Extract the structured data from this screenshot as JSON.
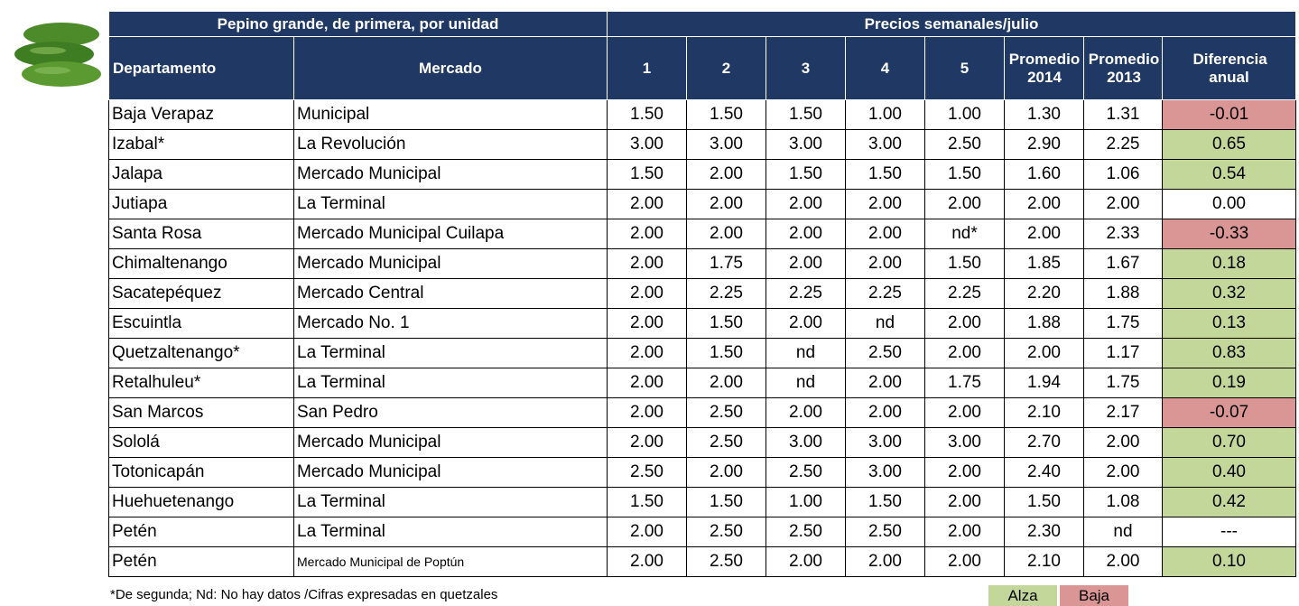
{
  "header": {
    "title": "Pepino grande, de primera, por unidad",
    "period": "Precios semanales/julio"
  },
  "columns": [
    "Departamento",
    "Mercado",
    "1",
    "2",
    "3",
    "4",
    "5",
    "Promedio 2014",
    "Promedio 2013",
    "Diferencia anual"
  ],
  "rows": [
    [
      "Baja Verapaz",
      "Municipal",
      "1.50",
      "1.50",
      "1.50",
      "1.00",
      "1.00",
      "1.30",
      "1.31",
      "-0.01"
    ],
    [
      "Izabal*",
      "La Revolución",
      "3.00",
      "3.00",
      "3.00",
      "3.00",
      "2.50",
      "2.90",
      "2.25",
      "0.65"
    ],
    [
      "Jalapa",
      "Mercado Municipal",
      "1.50",
      "2.00",
      "1.50",
      "1.50",
      "1.50",
      "1.60",
      "1.06",
      "0.54"
    ],
    [
      "Jutiapa",
      "La Terminal",
      "2.00",
      "2.00",
      "2.00",
      "2.00",
      "2.00",
      "2.00",
      "2.00",
      "0.00"
    ],
    [
      "Santa Rosa",
      "Mercado Municipal Cuilapa",
      "2.00",
      "2.00",
      "2.00",
      "2.00",
      "nd*",
      "2.00",
      "2.33",
      "-0.33"
    ],
    [
      "Chimaltenango",
      "Mercado Municipal",
      "2.00",
      "1.75",
      "2.00",
      "2.00",
      "1.50",
      "1.85",
      "1.67",
      "0.18"
    ],
    [
      "Sacatepéquez",
      "Mercado Central",
      "2.00",
      "2.25",
      "2.25",
      "2.25",
      "2.25",
      "2.20",
      "1.88",
      "0.32"
    ],
    [
      "Escuintla",
      "Mercado No. 1",
      "2.00",
      "1.50",
      "2.00",
      "nd",
      "2.00",
      "1.88",
      "1.75",
      "0.13"
    ],
    [
      "Quetzaltenango*",
      "La Terminal",
      "2.00",
      "1.50",
      "nd",
      "2.50",
      "2.00",
      "2.00",
      "1.17",
      "0.83"
    ],
    [
      "Retalhuleu*",
      "La Terminal",
      "2.00",
      "2.00",
      "nd",
      "2.00",
      "1.75",
      "1.94",
      "1.75",
      "0.19"
    ],
    [
      "San Marcos",
      "San Pedro",
      "2.00",
      "2.50",
      "2.00",
      "2.00",
      "2.00",
      "2.10",
      "2.17",
      "-0.07"
    ],
    [
      "Sololá",
      "Mercado Municipal",
      "2.00",
      "2.50",
      "3.00",
      "3.00",
      "3.00",
      "2.70",
      "2.00",
      "0.70"
    ],
    [
      "Totonicapán",
      "Mercado Municipal",
      "2.50",
      "2.00",
      "2.50",
      "3.00",
      "2.00",
      "2.40",
      "2.00",
      "0.40"
    ],
    [
      "Huehuetenango",
      "La Terminal",
      "1.50",
      "1.50",
      "1.00",
      "1.50",
      "2.00",
      "1.50",
      "1.08",
      "0.42"
    ],
    [
      "Petén",
      "La Terminal",
      "2.00",
      "2.50",
      "2.50",
      "2.50",
      "2.00",
      "2.30",
      "nd",
      "---"
    ],
    [
      "Petén",
      "Mercado Municipal de Poptún",
      "2.00",
      "2.50",
      "2.00",
      "2.00",
      "2.00",
      "2.10",
      "2.00",
      "0.10"
    ]
  ],
  "footnote": "*De segunda;  Nd: No hay datos /Cifras expresadas en quetzales",
  "legend": [
    {
      "label": "Alza",
      "color": "#c4d79b"
    },
    {
      "label": "Baja",
      "color": "#da9694"
    }
  ]
}
